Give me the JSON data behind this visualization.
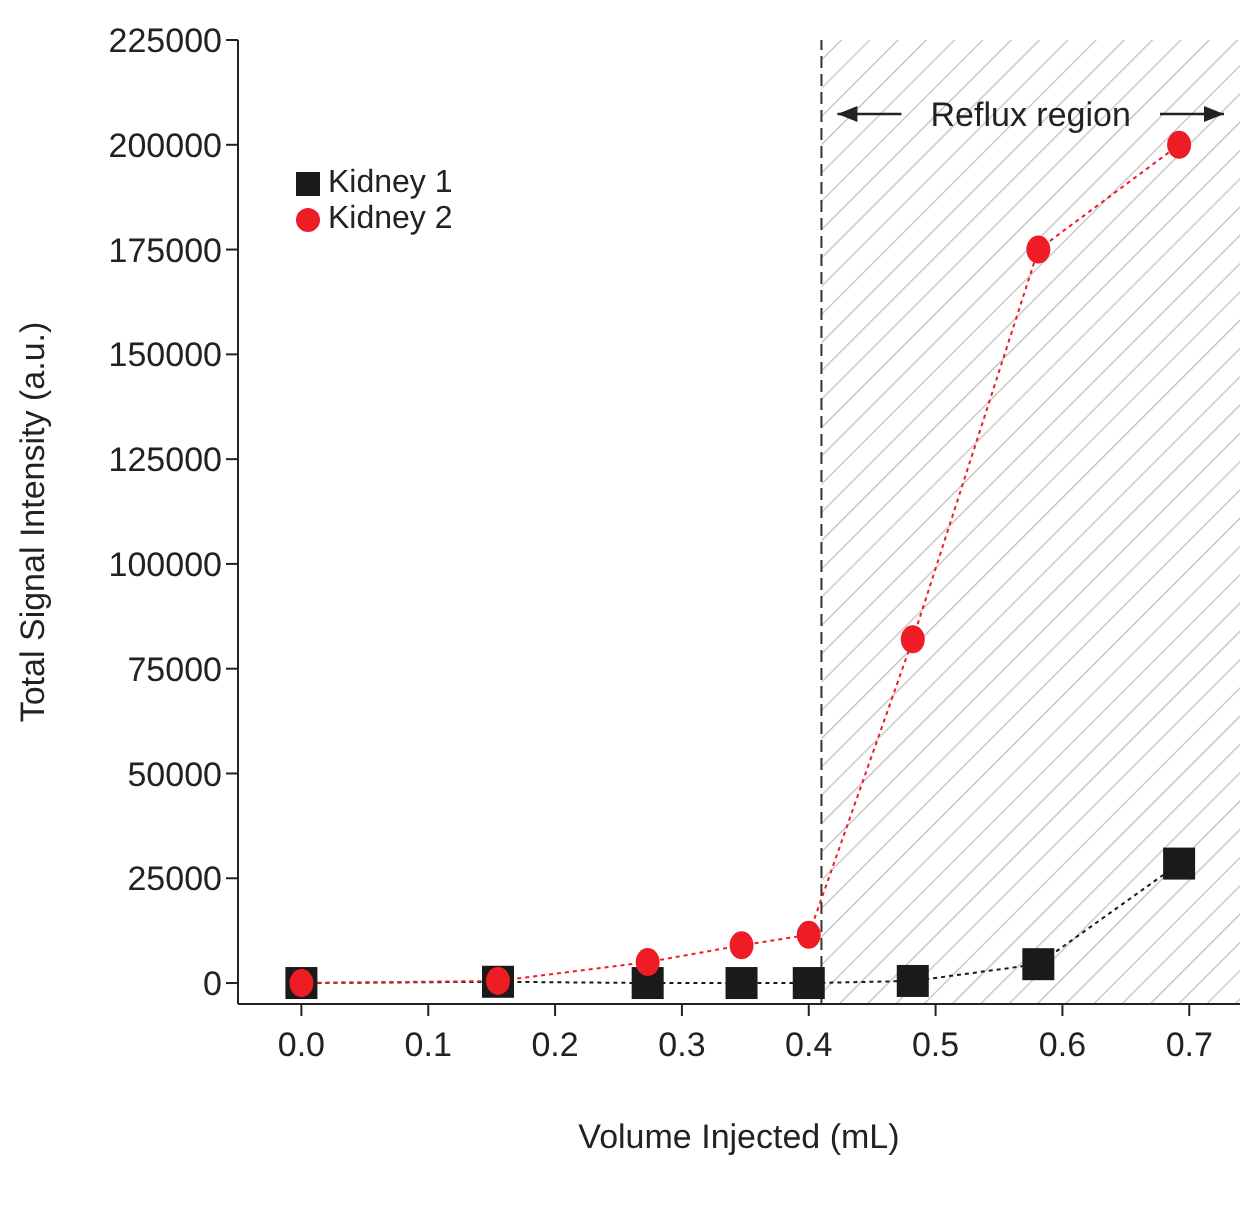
{
  "chart_data": {
    "type": "line",
    "xlabel": "Volume Injected (mL)",
    "ylabel": "Total Signal Intensity (a.u.)",
    "x": [
      0.0,
      0.155,
      0.273,
      0.347,
      0.4,
      0.482,
      0.581,
      0.692
    ],
    "series": [
      {
        "name": "Kidney 1",
        "color": "#1a1a1a",
        "marker": "square",
        "line_style": "dotted",
        "values": [
          0,
          300,
          0,
          0,
          0,
          500,
          4500,
          28500
        ]
      },
      {
        "name": "Kidney 2",
        "color": "#ee1c24",
        "marker": "circle",
        "line_style": "dotted",
        "values": [
          0,
          500,
          5000,
          9000,
          11500,
          82000,
          175000,
          200000
        ]
      }
    ],
    "xlim": [
      -0.05,
      0.74
    ],
    "xticks": [
      {
        "value": 0,
        "label": "0.0"
      },
      0.1,
      0.2,
      0.3,
      0.4,
      0.5,
      0.6,
      0.7
    ],
    "ylim": [
      -5000,
      225000
    ],
    "yticks": [
      0,
      25000,
      50000,
      75000,
      100000,
      125000,
      150000,
      175000,
      200000,
      225000
    ],
    "ref_lines": [
      {
        "axis": "x",
        "value": 0.41,
        "label": null,
        "color": "#333333",
        "line_style": "dashed"
      }
    ],
    "bands": [
      {
        "axis": "x",
        "from": 0.41,
        "to": 0.74,
        "label": "Reflux region",
        "color": "#bbbbbb"
      }
    ],
    "grid": false,
    "legend": "top left"
  }
}
